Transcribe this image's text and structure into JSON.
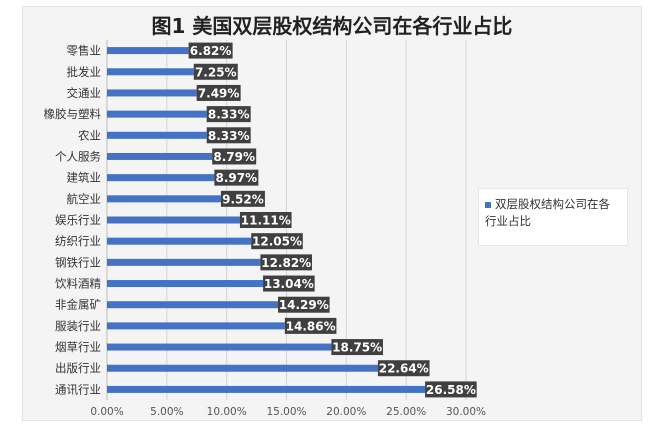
{
  "chart_data": {
    "type": "bar",
    "orientation": "horizontal",
    "title": "图1  美国双层股权结构公司在各行业占比",
    "categories": [
      "零售业",
      "批发业",
      "交通业",
      "橡胶与塑料",
      "农业",
      "个人服务",
      "建筑业",
      "航空业",
      "娱乐行业",
      "纺织行业",
      "钢铁行业",
      "饮料酒精",
      "非金属矿",
      "服装行业",
      "烟草行业",
      "出版行业",
      "通讯行业"
    ],
    "series": [
      {
        "name": "双层股权结构公司在各行业占比",
        "values": [
          6.82,
          7.25,
          7.49,
          8.33,
          8.33,
          8.79,
          8.97,
          9.52,
          11.11,
          12.05,
          12.82,
          13.04,
          14.29,
          14.86,
          18.75,
          22.64,
          26.58
        ],
        "labels": [
          "6.82%",
          "7.25%",
          "7.49%",
          "8.33%",
          "8.33%",
          "8.79%",
          "8.97%",
          "9.52%",
          "11.11%",
          "12.05%",
          "12.82%",
          "13.04%",
          "14.29%",
          "14.86%",
          "18.75%",
          "22.64%",
          "26.58%"
        ]
      }
    ],
    "xlim": [
      0,
      30
    ],
    "xticks": [
      "0.00%",
      "5.00%",
      "10.00%",
      "15.00%",
      "20.00%",
      "25.00%",
      "30.00%"
    ],
    "grid": true,
    "legend_position": "right",
    "colors": {
      "bar": "#4472c4",
      "label_bg": "#404040",
      "label_text": "#ffffff"
    }
  }
}
